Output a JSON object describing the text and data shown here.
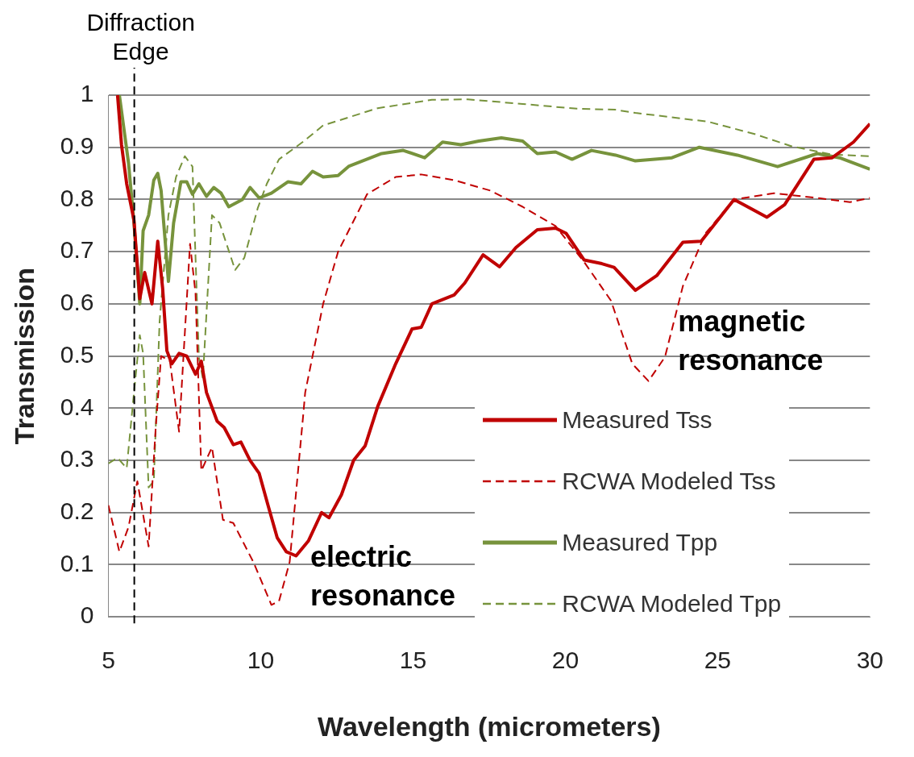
{
  "chart_data": {
    "type": "line",
    "xlabel": "Wavelength (micrometers)",
    "ylabel": "Transmission",
    "xlim": [
      5,
      30
    ],
    "xticks": [
      5,
      10,
      15,
      20,
      25,
      30
    ],
    "ylim": [
      0,
      1
    ],
    "yticks": [
      0,
      0.1,
      0.2,
      0.3,
      0.4,
      0.5,
      0.6,
      0.7,
      0.8,
      0.9,
      1
    ],
    "grid": "y",
    "legend": "bottom right",
    "marker": "none",
    "ref_lines": [
      {
        "axis": "x",
        "value": 5.85,
        "label": "Diffraction Edge",
        "color": "#000000",
        "line_style": "dashed"
      }
    ],
    "annotations": [
      "electric resonance",
      "magnetic resonance"
    ],
    "series": [
      {
        "name": "Measured Tss",
        "color": "#c00000",
        "line_style": "solid",
        "x": [
          5.3,
          5.43,
          5.6,
          5.84,
          6.03,
          6.19,
          6.43,
          6.62,
          6.78,
          6.92,
          7.08,
          7.32,
          7.57,
          7.86,
          8.05,
          8.22,
          8.57,
          8.8,
          9.1,
          9.35,
          9.65,
          9.95,
          10.24,
          10.54,
          10.84,
          11.16,
          11.57,
          12.0,
          12.24,
          12.65,
          13.05,
          13.43,
          13.84,
          14.43,
          14.97,
          15.27,
          15.62,
          16.35,
          16.7,
          17.3,
          17.84,
          18.38,
          19.08,
          19.68,
          20.03,
          20.62,
          21.2,
          21.6,
          22.3,
          23.0,
          23.86,
          24.46,
          25.54,
          26.62,
          27.2,
          28.16,
          28.76,
          29.46,
          30
        ],
        "values": [
          1.0,
          0.905,
          0.83,
          0.76,
          0.61,
          0.66,
          0.6,
          0.72,
          0.63,
          0.51,
          0.485,
          0.505,
          0.5,
          0.465,
          0.49,
          0.43,
          0.375,
          0.363,
          0.33,
          0.335,
          0.3,
          0.275,
          0.214,
          0.152,
          0.125,
          0.117,
          0.146,
          0.2,
          0.19,
          0.234,
          0.3,
          0.328,
          0.403,
          0.485,
          0.552,
          0.555,
          0.6,
          0.617,
          0.64,
          0.694,
          0.671,
          0.708,
          0.742,
          0.745,
          0.735,
          0.684,
          0.677,
          0.67,
          0.626,
          0.654,
          0.718,
          0.72,
          0.8,
          0.766,
          0.79,
          0.877,
          0.88,
          0.91,
          0.945
        ]
      },
      {
        "name": "RCWA Modeled Tss",
        "color": "#c00000",
        "line_style": "dashed",
        "x": [
          5.0,
          5.36,
          5.66,
          5.95,
          6.32,
          6.55,
          6.73,
          7.02,
          7.32,
          7.68,
          7.86,
          8.05,
          8.4,
          8.76,
          9.1,
          9.76,
          10.35,
          10.6,
          10.95,
          11.4,
          11.46,
          12.05,
          12.54,
          13.49,
          14.43,
          15.27,
          16.35,
          17.54,
          18.6,
          19.68,
          20.62,
          21.5,
          22.2,
          22.73,
          23.27,
          23.86,
          24.6,
          25.54,
          26.84,
          28.27,
          29.35,
          30
        ],
        "values": [
          0.214,
          0.125,
          0.172,
          0.26,
          0.135,
          0.36,
          0.5,
          0.49,
          0.355,
          0.715,
          0.62,
          0.28,
          0.325,
          0.186,
          0.18,
          0.105,
          0.023,
          0.03,
          0.105,
          0.39,
          0.43,
          0.6,
          0.7,
          0.81,
          0.843,
          0.848,
          0.837,
          0.817,
          0.786,
          0.749,
          0.68,
          0.606,
          0.485,
          0.452,
          0.498,
          0.634,
          0.735,
          0.8,
          0.812,
          0.803,
          0.795,
          0.803
        ]
      },
      {
        "name": "Measured Tpp",
        "color": "#77933c",
        "line_style": "solid",
        "x": [
          5.36,
          5.66,
          5.84,
          6.03,
          6.14,
          6.32,
          6.49,
          6.62,
          6.73,
          6.97,
          7.14,
          7.38,
          7.57,
          7.76,
          7.97,
          8.22,
          8.46,
          8.7,
          8.95,
          9.4,
          9.65,
          9.95,
          10.35,
          10.9,
          11.32,
          11.7,
          12.05,
          12.54,
          12.9,
          13.97,
          14.68,
          15.38,
          15.97,
          16.57,
          17.16,
          17.9,
          18.6,
          19.08,
          19.68,
          20.22,
          20.86,
          21.65,
          22.3,
          23.5,
          24.4,
          25.65,
          26.97,
          28.27,
          29.0,
          30
        ],
        "values": [
          1.0,
          0.87,
          0.755,
          0.6,
          0.74,
          0.77,
          0.837,
          0.85,
          0.817,
          0.643,
          0.755,
          0.834,
          0.834,
          0.81,
          0.83,
          0.806,
          0.823,
          0.812,
          0.786,
          0.8,
          0.823,
          0.803,
          0.812,
          0.834,
          0.83,
          0.854,
          0.843,
          0.846,
          0.864,
          0.888,
          0.894,
          0.88,
          0.91,
          0.905,
          0.912,
          0.918,
          0.912,
          0.888,
          0.891,
          0.877,
          0.894,
          0.885,
          0.874,
          0.88,
          0.9,
          0.885,
          0.863,
          0.888,
          0.88,
          0.858
        ]
      },
      {
        "name": "RCWA Modeled Tpp",
        "color": "#77933c",
        "line_style": "dashed",
        "x": [
          5.0,
          5.3,
          5.6,
          5.84,
          6.03,
          6.14,
          6.32,
          6.49,
          6.68,
          6.97,
          7.22,
          7.51,
          7.76,
          7.97,
          8.1,
          8.4,
          8.65,
          9.16,
          9.46,
          9.9,
          10.2,
          10.6,
          11.4,
          12.05,
          13.84,
          15.62,
          16.8,
          18.6,
          20.38,
          21.65,
          22.3,
          24.7,
          26.24,
          27.43,
          28.76,
          30
        ],
        "values": [
          0.294,
          0.305,
          0.285,
          0.43,
          0.54,
          0.505,
          0.248,
          0.26,
          0.566,
          0.77,
          0.843,
          0.883,
          0.863,
          0.498,
          0.457,
          0.77,
          0.755,
          0.665,
          0.688,
          0.783,
          0.83,
          0.877,
          0.911,
          0.942,
          0.975,
          0.991,
          0.992,
          0.983,
          0.974,
          0.972,
          0.966,
          0.949,
          0.925,
          0.902,
          0.886,
          0.883
        ]
      }
    ]
  }
}
